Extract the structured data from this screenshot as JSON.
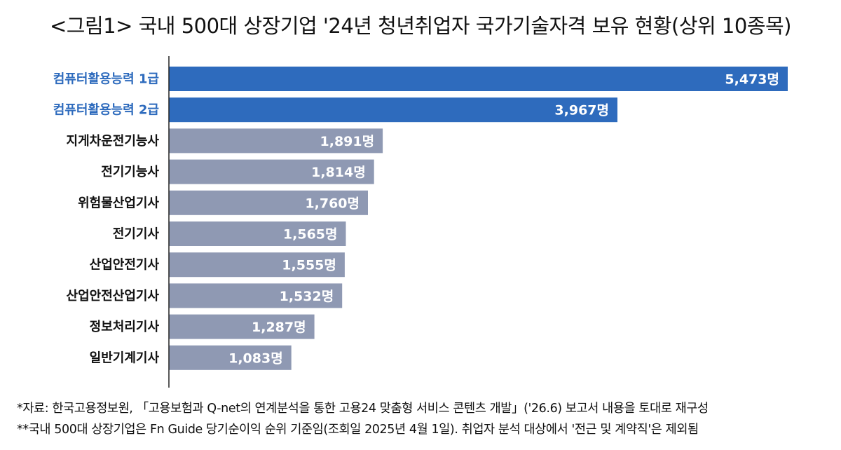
{
  "title": "<그림1> 국내 500대 상장기업 '24년 청년취업자 국가기술자격 보유 현황(상위 10종목)",
  "colors": {
    "highlight_bar": "#2e6bbd",
    "highlight_label": "#2e6bbd",
    "normal_bar": "#8f99b3",
    "normal_label": "#111111",
    "value_text": "#ffffff",
    "axis_line": "#222222"
  },
  "chart_data": {
    "type": "bar",
    "orientation": "horizontal",
    "categories": [
      "컴퓨터활용능력 1급",
      "컴퓨터활용능력 2급",
      "지게차운전기능사",
      "전기기능사",
      "위험물산업기사",
      "전기기사",
      "산업안전기사",
      "산업안전산업기사",
      "정보처리기사",
      "일반기계기사"
    ],
    "values": [
      5473,
      3967,
      1891,
      1814,
      1760,
      1565,
      1555,
      1532,
      1287,
      1083
    ],
    "value_labels": [
      "5,473명",
      "3,967명",
      "1,891명",
      "1,814명",
      "1,760명",
      "1,565명",
      "1,555명",
      "1,532명",
      "1,287명",
      "1,083명"
    ],
    "highlighted": [
      true,
      true,
      false,
      false,
      false,
      false,
      false,
      false,
      false,
      false
    ],
    "xlim": [
      0,
      5600
    ],
    "grid": false,
    "legend": "none"
  },
  "notes": [
    "*자료: 한국고용정보원, 「고용보험과 Q-net의 연계분석을 통한 고용24 맞춤형 서비스 콘텐츠 개발」('26.6) 보고서 내용을 토대로 재구성",
    "**국내 500대 상장기업은 Fn Guide 당기순이익 순위 기준임(조회일 2025년 4월 1일). 취업자 분석 대상에서 '전근 및 계약직'은 제외됨"
  ]
}
